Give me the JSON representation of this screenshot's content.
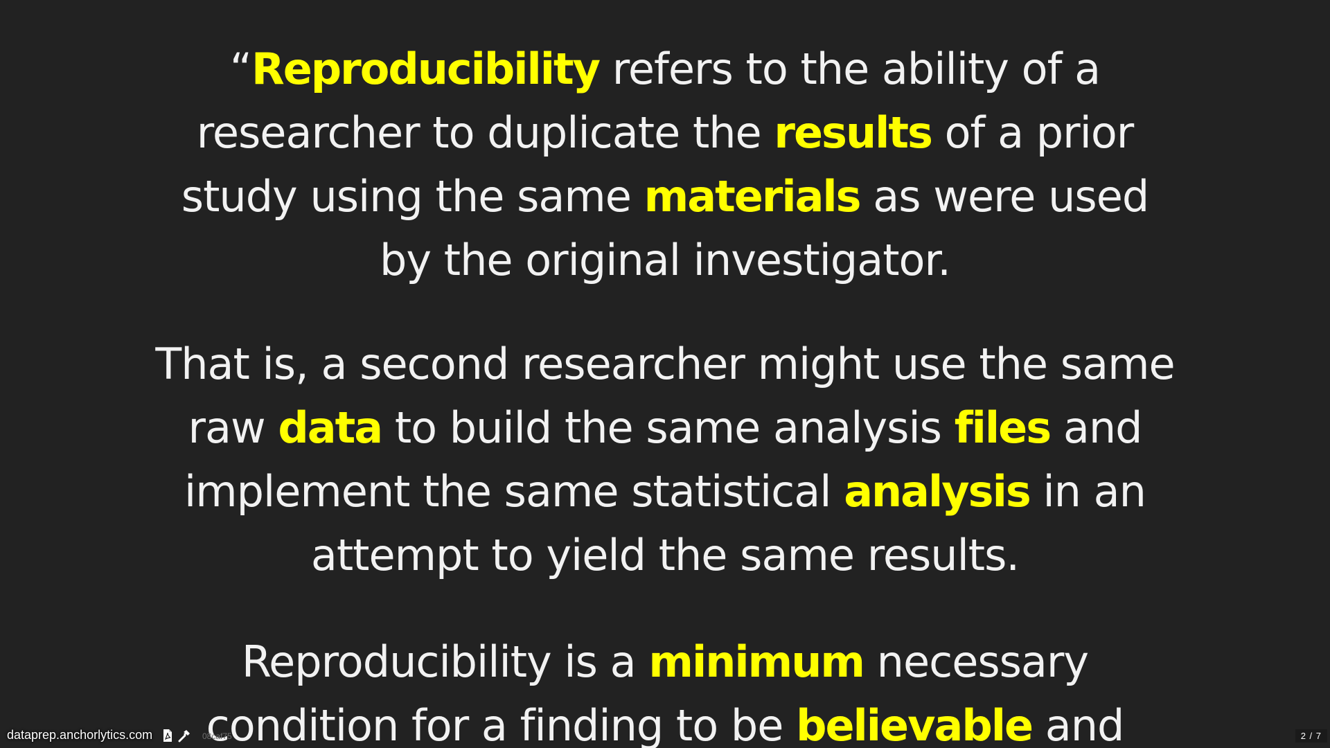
{
  "colors": {
    "background": "#222222",
    "text": "#f2f2f2",
    "highlight": "#ffff00"
  },
  "quote1": {
    "open_quote": "“",
    "w1": "Reproducibility",
    "t1": " refers to the ability of a researcher to duplicate the ",
    "w2": "results",
    "t2": " of a prior study using the same ",
    "w3": "materials",
    "t3": " as were used by the original investigator."
  },
  "quote2": {
    "t0": "That is, a second researcher might use the same raw ",
    "w1": "data",
    "t1": " to build the same analysis ",
    "w2": "files",
    "t2": " and implement the same statistical ",
    "w3": "analysis",
    "t3": " in an attempt to yield the same results."
  },
  "quote3": {
    "t0": "Reproducibility is a ",
    "w1": "minimum",
    "t1": " necessary condition for a finding to be ",
    "w2": "believable",
    "t2": " and"
  },
  "footer": {
    "url": "dataprep.anchorlytics.com",
    "icons": [
      "pdf-icon",
      "hammer-icon"
    ],
    "hash": "08caf75",
    "slide_number": "2 / 7"
  }
}
